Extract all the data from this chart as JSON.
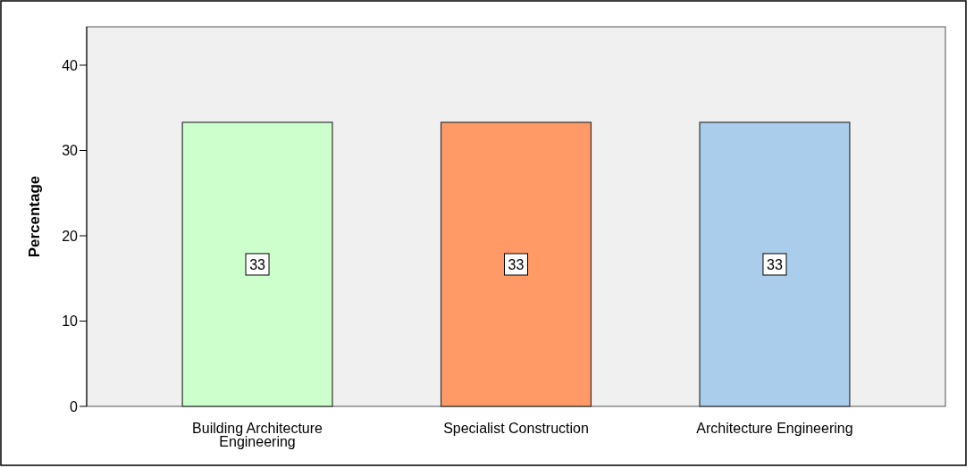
{
  "chart_data": {
    "type": "bar",
    "ylabel": "Percentage",
    "categories": [
      "Building Architecture Engineering",
      "Specialist Construction",
      "Architecture Engineering"
    ],
    "values": [
      33.3,
      33.3,
      33.3
    ],
    "colors": [
      "#ccffcc",
      "#ff9966",
      "#aacdeb"
    ],
    "value_labels": [
      "33",
      "33",
      "33"
    ],
    "ylim": [
      0,
      44.5
    ],
    "yticks": [
      0,
      10,
      20,
      30,
      40
    ],
    "grid": false
  }
}
